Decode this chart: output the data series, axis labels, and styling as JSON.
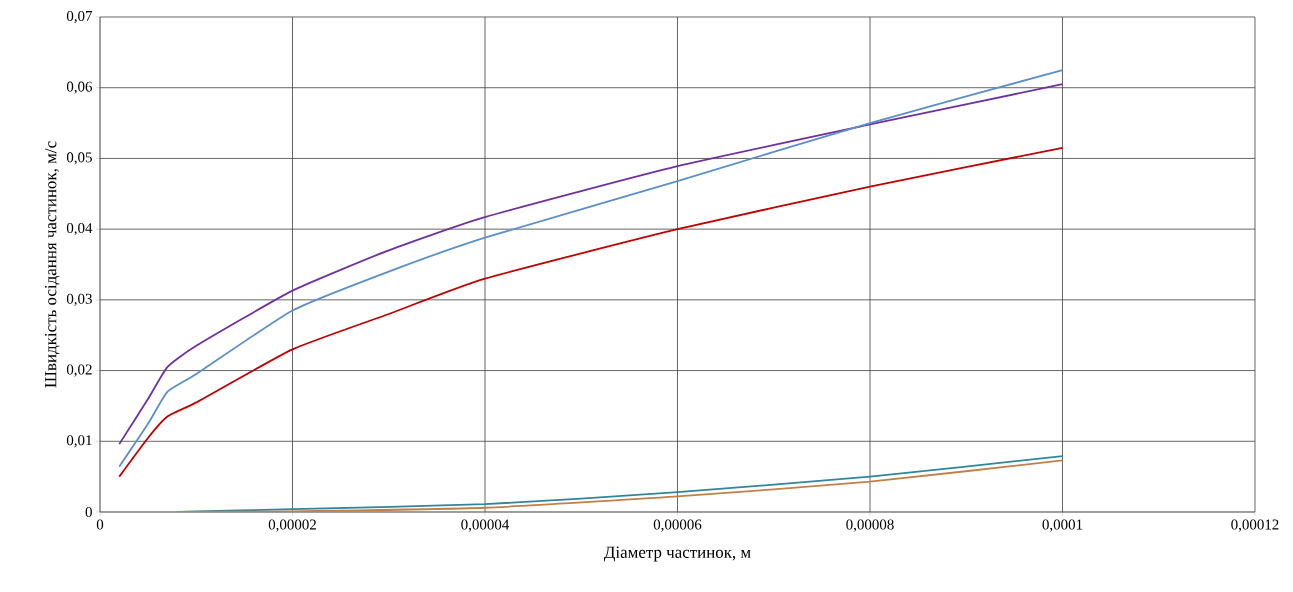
{
  "chart_data": {
    "type": "line",
    "xlabel": "Діаметр частинок, м",
    "ylabel": "Швидкість осідання частинок, м/с",
    "xlim": [
      0,
      0.00012
    ],
    "ylim": [
      0,
      0.07
    ],
    "xticks": [
      {
        "value": 0,
        "label": "0"
      },
      {
        "value": 2e-05,
        "label": "0,00002"
      },
      {
        "value": 4e-05,
        "label": "0,00004"
      },
      {
        "value": 6e-05,
        "label": "0,00006"
      },
      {
        "value": 8e-05,
        "label": "0,00008"
      },
      {
        "value": 0.0001,
        "label": "0,0001"
      },
      {
        "value": 0.00012,
        "label": "0,00012"
      }
    ],
    "yticks": [
      {
        "value": 0,
        "label": "0"
      },
      {
        "value": 0.01,
        "label": "0,01"
      },
      {
        "value": 0.02,
        "label": "0,02"
      },
      {
        "value": 0.03,
        "label": "0,03"
      },
      {
        "value": 0.04,
        "label": "0,04"
      },
      {
        "value": 0.05,
        "label": "0,05"
      },
      {
        "value": 0.06,
        "label": "0,06"
      },
      {
        "value": 0.07,
        "label": "0,07"
      }
    ],
    "grid": true,
    "marker": "none",
    "line_style": "solid",
    "series": [
      {
        "color": "#7030a0",
        "x": [
          2e-06,
          5e-06,
          7e-06,
          1e-05,
          2e-05,
          3e-05,
          4e-05,
          6e-05,
          8e-05,
          0.0001
        ],
        "values": [
          0.0096,
          0.016,
          0.0205,
          0.0235,
          0.0313,
          0.037,
          0.0417,
          0.0489,
          0.0548,
          0.0605
        ]
      },
      {
        "color": "#5b8fc9",
        "x": [
          2e-06,
          5e-06,
          7e-06,
          1e-05,
          2e-05,
          3e-05,
          4e-05,
          6e-05,
          8e-05,
          0.0001
        ],
        "values": [
          0.0064,
          0.0125,
          0.017,
          0.0195,
          0.0285,
          0.034,
          0.0388,
          0.0468,
          0.055,
          0.0625
        ]
      },
      {
        "color": "#c00000",
        "x": [
          2e-06,
          5e-06,
          7e-06,
          1e-05,
          2e-05,
          3e-05,
          4e-05,
          6e-05,
          8e-05,
          0.0001
        ],
        "values": [
          0.005,
          0.0105,
          0.0135,
          0.0155,
          0.023,
          0.028,
          0.033,
          0.04,
          0.046,
          0.0515
        ]
      },
      {
        "color": "#31859c",
        "x": [
          8e-06,
          2e-05,
          4e-05,
          6e-05,
          8e-05,
          0.0001
        ],
        "values": [
          0,
          0.0004,
          0.0011,
          0.0028,
          0.005,
          0.0079
        ]
      },
      {
        "color": "#c0804a",
        "x": [
          8e-06,
          2e-05,
          4e-05,
          6e-05,
          8e-05,
          0.0001
        ],
        "values": [
          0,
          0.0001,
          0.0006,
          0.0022,
          0.0043,
          0.0073
        ]
      }
    ]
  }
}
